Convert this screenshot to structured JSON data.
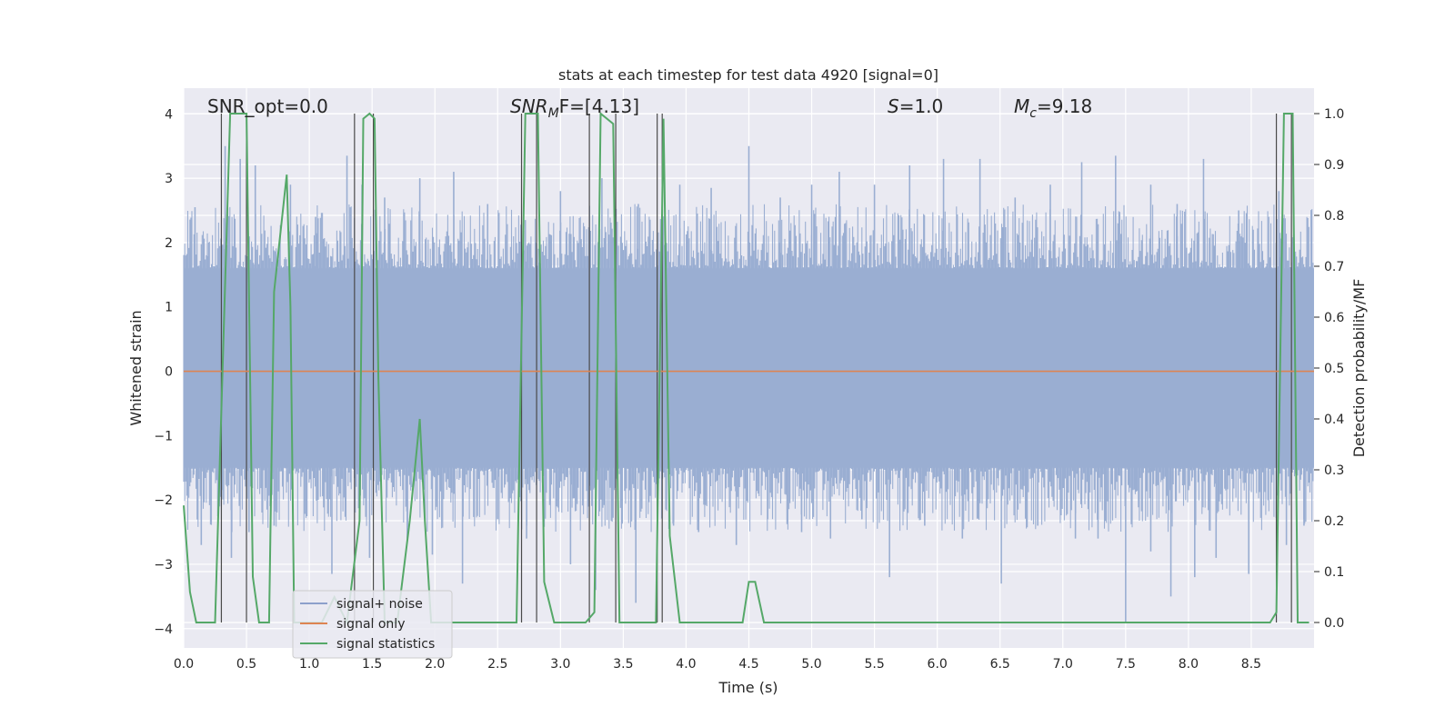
{
  "chart_data": {
    "type": "line",
    "title": "stats at each timestep for test data 4920 [signal=0]",
    "xlabel": "Time (s)",
    "ylabel": "Whitened strain",
    "y2label": "Detection probability/MF",
    "xlim": [
      0.0,
      9.0
    ],
    "ylim": [
      -4.3,
      4.4
    ],
    "y2lim": [
      -0.05,
      1.05
    ],
    "xticks": [
      0.0,
      0.5,
      1.0,
      1.5,
      2.0,
      2.5,
      3.0,
      3.5,
      4.0,
      4.5,
      5.0,
      5.5,
      6.0,
      6.5,
      7.0,
      7.5,
      8.0,
      8.5
    ],
    "xtick_labels": [
      "0.0",
      "0.5",
      "1.0",
      "1.5",
      "2.0",
      "2.5",
      "3.0",
      "3.5",
      "4.0",
      "4.5",
      "5.0",
      "5.5",
      "6.0",
      "6.5",
      "7.0",
      "7.5",
      "8.0",
      "8.5"
    ],
    "yticks": [
      4,
      3,
      2,
      1,
      0,
      -1,
      -2,
      -3,
      -4
    ],
    "ytick_labels": [
      "4",
      "3",
      "2",
      "1",
      "0",
      "−1",
      "−2",
      "−3",
      "−4"
    ],
    "y2ticks": [
      1.0,
      0.9,
      0.8,
      0.7,
      0.6,
      0.5,
      0.4,
      0.3,
      0.2,
      0.1,
      0.0
    ],
    "y2tick_labels": [
      "1.0",
      "0.9",
      "0.8",
      "0.7",
      "0.6",
      "0.5",
      "0.4",
      "0.3",
      "0.2",
      "0.1",
      "0.0"
    ],
    "annotations": {
      "snr_opt": "SNR_opt=0.0",
      "snr_mf_main": "SNR",
      "snr_mf_sub": "M",
      "snr_mf_tail": "F=[4.13]",
      "s_main": "S",
      "s_tail": "=1.0",
      "mc_main": "M",
      "mc_sub": "c",
      "mc_tail": "=9.18"
    },
    "legend": {
      "position": "lower-left",
      "entries": [
        {
          "label": "signal+ noise",
          "color": "#8da0cb"
        },
        {
          "label": "signal only",
          "color": "#dd8452"
        },
        {
          "label": "signal statistics",
          "color": "#55a868"
        }
      ]
    },
    "noise": {
      "name": "signal+ noise",
      "color": "#9aaed2",
      "t_start": 0.0,
      "t_end": 9.0,
      "band_low": -1.5,
      "band_high": 1.6,
      "spikes": [
        {
          "t": 0.09,
          "v": 2.55
        },
        {
          "t": 0.2,
          "v": 2.0
        },
        {
          "t": 0.33,
          "v": 3.5
        },
        {
          "t": 0.45,
          "v": 3.3
        },
        {
          "t": 0.57,
          "v": 3.2
        },
        {
          "t": 0.85,
          "v": 2.9
        },
        {
          "t": 1.05,
          "v": 2.4
        },
        {
          "t": 1.3,
          "v": 3.35
        },
        {
          "t": 1.42,
          "v": 2.9
        },
        {
          "t": 1.6,
          "v": 2.7
        },
        {
          "t": 1.88,
          "v": 3.0
        },
        {
          "t": 2.15,
          "v": 3.1
        },
        {
          "t": 2.42,
          "v": 2.6
        },
        {
          "t": 2.72,
          "v": 2.35
        },
        {
          "t": 3.0,
          "v": 2.8
        },
        {
          "t": 3.33,
          "v": 3.0
        },
        {
          "t": 3.62,
          "v": 2.6
        },
        {
          "t": 3.95,
          "v": 2.9
        },
        {
          "t": 4.2,
          "v": 2.85
        },
        {
          "t": 4.5,
          "v": 3.5
        },
        {
          "t": 4.75,
          "v": 2.7
        },
        {
          "t": 5.0,
          "v": 2.9
        },
        {
          "t": 5.22,
          "v": 3.1
        },
        {
          "t": 5.5,
          "v": 2.9
        },
        {
          "t": 5.78,
          "v": 3.2
        },
        {
          "t": 6.05,
          "v": 3.3
        },
        {
          "t": 6.34,
          "v": 3.3
        },
        {
          "t": 6.62,
          "v": 2.7
        },
        {
          "t": 6.9,
          "v": 2.9
        },
        {
          "t": 7.15,
          "v": 3.25
        },
        {
          "t": 7.42,
          "v": 3.35
        },
        {
          "t": 7.7,
          "v": 2.9
        },
        {
          "t": 7.91,
          "v": 2.6
        },
        {
          "t": 8.12,
          "v": 3.3
        },
        {
          "t": 8.4,
          "v": 2.5
        },
        {
          "t": 8.72,
          "v": 2.8
        },
        {
          "t": 0.14,
          "v": -2.7
        },
        {
          "t": 0.38,
          "v": -2.9
        },
        {
          "t": 0.52,
          "v": -2.5
        },
        {
          "t": 0.72,
          "v": -2.4
        },
        {
          "t": 1.18,
          "v": -3.15
        },
        {
          "t": 1.48,
          "v": -2.9
        },
        {
          "t": 1.78,
          "v": -2.6
        },
        {
          "t": 1.98,
          "v": -2.85
        },
        {
          "t": 2.22,
          "v": -3.3
        },
        {
          "t": 2.5,
          "v": -2.3
        },
        {
          "t": 2.73,
          "v": -2.6
        },
        {
          "t": 3.08,
          "v": -3.0
        },
        {
          "t": 3.28,
          "v": -3.4
        },
        {
          "t": 3.6,
          "v": -3.6
        },
        {
          "t": 3.9,
          "v": -2.4
        },
        {
          "t": 4.1,
          "v": -2.5
        },
        {
          "t": 4.4,
          "v": -2.7
        },
        {
          "t": 4.65,
          "v": -2.3
        },
        {
          "t": 4.92,
          "v": -2.5
        },
        {
          "t": 5.15,
          "v": -2.6
        },
        {
          "t": 5.4,
          "v": -2.3
        },
        {
          "t": 5.62,
          "v": -3.2
        },
        {
          "t": 5.9,
          "v": -2.4
        },
        {
          "t": 6.2,
          "v": -2.6
        },
        {
          "t": 6.51,
          "v": -3.3
        },
        {
          "t": 6.8,
          "v": -2.4
        },
        {
          "t": 7.1,
          "v": -2.6
        },
        {
          "t": 7.28,
          "v": -2.6
        },
        {
          "t": 7.5,
          "v": -3.9
        },
        {
          "t": 7.7,
          "v": -2.8
        },
        {
          "t": 7.86,
          "v": -3.5
        },
        {
          "t": 8.05,
          "v": -3.2
        },
        {
          "t": 8.22,
          "v": -2.9
        },
        {
          "t": 8.48,
          "v": -3.15
        },
        {
          "t": 8.78,
          "v": -2.7
        },
        {
          "t": 8.92,
          "v": -2.4
        }
      ]
    },
    "signal_only": {
      "name": "signal only",
      "color": "#dd8452",
      "value": 0.0
    },
    "statistics": {
      "name": "signal statistics",
      "color": "#55a868",
      "x": [
        0.0,
        0.05,
        0.1,
        0.2,
        0.25,
        0.37,
        0.4,
        0.5,
        0.55,
        0.6,
        0.62,
        0.68,
        0.72,
        0.82,
        0.85,
        0.88,
        0.9,
        1.0,
        1.1,
        1.2,
        1.3,
        1.4,
        1.43,
        1.48,
        1.52,
        1.55,
        1.6,
        1.7,
        1.8,
        1.88,
        1.92,
        1.97,
        2.0,
        2.5,
        2.65,
        2.72,
        2.76,
        2.82,
        2.87,
        2.95,
        3.2,
        3.27,
        3.32,
        3.42,
        3.47,
        3.55,
        3.68,
        3.76,
        3.82,
        3.87,
        3.95,
        4.2,
        4.45,
        4.5,
        4.55,
        4.62,
        4.9,
        6.0,
        7.0,
        8.0,
        8.65,
        8.7,
        8.76,
        8.83,
        8.87,
        8.91,
        8.96
      ],
      "y": [
        0.23,
        0.06,
        0.0,
        0.0,
        0.0,
        1.0,
        1.0,
        1.0,
        0.09,
        0.0,
        0.0,
        0.0,
        0.65,
        0.88,
        0.62,
        0.0,
        0.0,
        0.0,
        0.0,
        0.05,
        0.0,
        0.2,
        0.99,
        1.0,
        0.99,
        0.48,
        0.0,
        0.0,
        0.2,
        0.4,
        0.2,
        0.0,
        0.0,
        0.0,
        0.0,
        1.0,
        1.0,
        1.0,
        0.08,
        0.0,
        0.0,
        0.02,
        1.0,
        0.98,
        0.0,
        0.0,
        0.0,
        0.0,
        0.99,
        0.17,
        0.0,
        0.0,
        0.0,
        0.08,
        0.08,
        0.0,
        0.0,
        0.0,
        0.0,
        0.0,
        0.0,
        0.02,
        1.0,
        1.0,
        0.0,
        0.0,
        0.0
      ]
    },
    "vertical_markers": [
      0.3,
      0.5,
      1.36,
      1.51,
      2.69,
      2.81,
      3.23,
      3.44,
      3.77,
      3.81,
      8.7,
      8.82
    ]
  }
}
